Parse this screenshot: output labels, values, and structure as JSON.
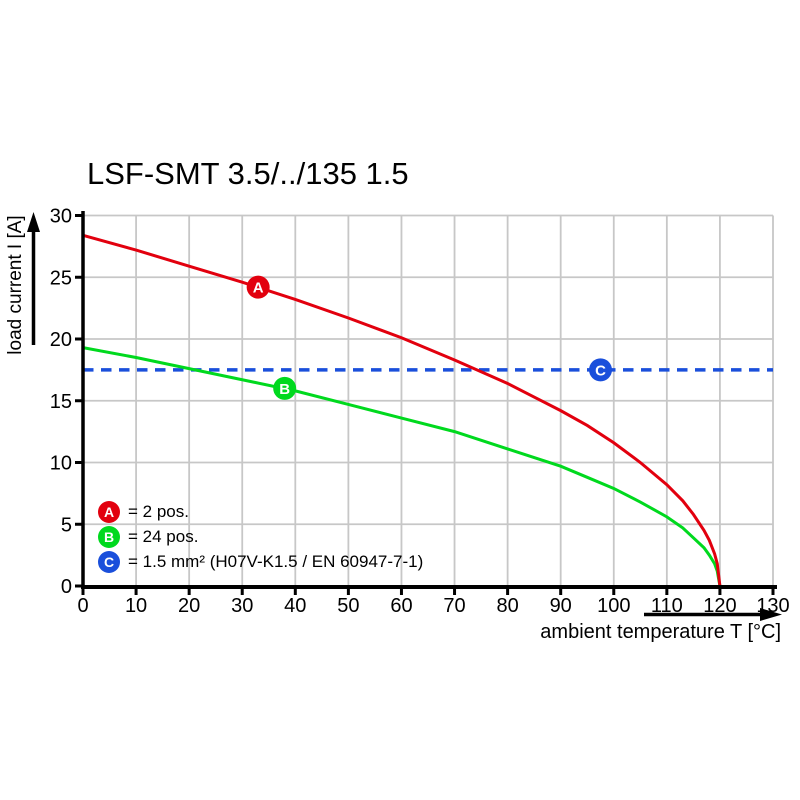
{
  "chart_data": {
    "type": "line",
    "title": "LSF-SMT 3.5/../135 1.5",
    "xlabel": "ambient temperature T [°C]",
    "ylabel": "load current I [A]",
    "xlim": [
      0,
      130
    ],
    "ylim": [
      0,
      30
    ],
    "x_ticks": [
      0,
      10,
      20,
      30,
      40,
      50,
      60,
      70,
      80,
      90,
      100,
      110,
      120,
      130
    ],
    "y_ticks": [
      0,
      5,
      10,
      15,
      20,
      25,
      30
    ],
    "grid": true,
    "legend_position": "inside-bottom-left",
    "colors": {
      "grid": "#c7c7c7",
      "axis": "#000000",
      "red": "#e2000e",
      "green": "#00d91e",
      "blue": "#1a4fdb"
    },
    "series": [
      {
        "id": "A",
        "name": "2 pos.",
        "color": "#e2000e",
        "style": "solid",
        "points": [
          [
            0,
            28.4
          ],
          [
            10,
            27.2
          ],
          [
            20,
            25.9
          ],
          [
            30,
            24.6
          ],
          [
            40,
            23.2
          ],
          [
            50,
            21.7
          ],
          [
            60,
            20.1
          ],
          [
            70,
            18.3
          ],
          [
            80,
            16.4
          ],
          [
            85,
            15.3
          ],
          [
            90,
            14.2
          ],
          [
            95,
            13.0
          ],
          [
            100,
            11.6
          ],
          [
            105,
            10.0
          ],
          [
            110,
            8.2
          ],
          [
            113,
            6.9
          ],
          [
            115,
            5.8
          ],
          [
            117,
            4.5
          ],
          [
            118,
            3.7
          ],
          [
            119,
            2.6
          ],
          [
            119.5,
            1.8
          ],
          [
            120,
            0
          ]
        ]
      },
      {
        "id": "B",
        "name": "24 pos.",
        "color": "#00d91e",
        "style": "solid",
        "points": [
          [
            0,
            19.3
          ],
          [
            10,
            18.5
          ],
          [
            20,
            17.6
          ],
          [
            30,
            16.7
          ],
          [
            40,
            15.8
          ],
          [
            50,
            14.7
          ],
          [
            60,
            13.6
          ],
          [
            70,
            12.5
          ],
          [
            80,
            11.1
          ],
          [
            85,
            10.4
          ],
          [
            90,
            9.7
          ],
          [
            95,
            8.8
          ],
          [
            100,
            7.9
          ],
          [
            105,
            6.8
          ],
          [
            110,
            5.6
          ],
          [
            113,
            4.7
          ],
          [
            115,
            3.9
          ],
          [
            117,
            3.1
          ],
          [
            118,
            2.5
          ],
          [
            119,
            1.8
          ],
          [
            119.5,
            1.2
          ],
          [
            120,
            0
          ]
        ]
      },
      {
        "id": "C",
        "name": "1.5 mm² (H07V-K1.5 / EN 60947-7-1)",
        "color": "#1a4fdb",
        "style": "dashed",
        "points": [
          [
            0,
            17.5
          ],
          [
            130,
            17.5
          ]
        ]
      }
    ],
    "markers": [
      {
        "label": "A",
        "x": 33,
        "y": 24.2,
        "color": "#e2000e"
      },
      {
        "label": "B",
        "x": 38,
        "y": 16.0,
        "color": "#00d91e"
      },
      {
        "label": "C",
        "x": 97.5,
        "y": 17.5,
        "color": "#1a4fdb"
      }
    ],
    "legend": [
      {
        "marker": "A",
        "color": "#e2000e",
        "label": "= 2 pos."
      },
      {
        "marker": "B",
        "color": "#00d91e",
        "label": "= 24 pos."
      },
      {
        "marker": "C",
        "color": "#1a4fdb",
        "label": "= 1.5 mm² (H07V-K1.5 / EN 60947-7-1)"
      }
    ]
  }
}
